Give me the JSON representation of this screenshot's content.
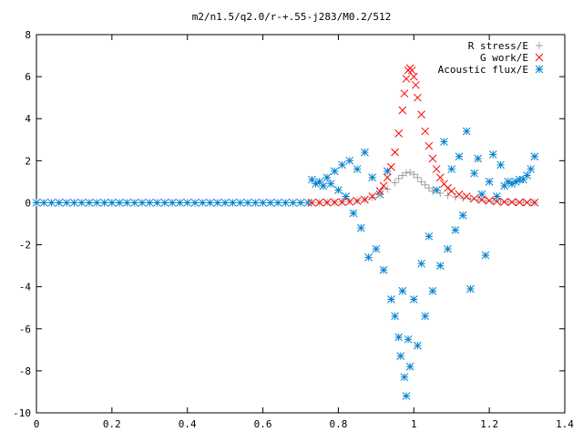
{
  "chart_data": {
    "type": "scatter",
    "title": "m2/n1.5/q2.0/r-+.55-j283/M0.2/512",
    "xlabel": "",
    "ylabel": "",
    "xlim": [
      0,
      1.4
    ],
    "ylim": [
      -10,
      8
    ],
    "x_ticks": [
      "0",
      "0.2",
      "0.4",
      "0.6",
      "0.8",
      "1",
      "1.2",
      "1.4"
    ],
    "y_ticks": [
      "8",
      "6",
      "4",
      "2",
      "0",
      "-2",
      "-4",
      "-6",
      "-8",
      "-10"
    ],
    "grid": false,
    "legend_position": "top-right",
    "series": [
      {
        "name": "R stress/E",
        "marker": "plus",
        "color": "#a0a0a0",
        "points": [
          [
            0.73,
            0.0
          ],
          [
            0.75,
            0.01
          ],
          [
            0.77,
            0.02
          ],
          [
            0.79,
            0.03
          ],
          [
            0.81,
            0.04
          ],
          [
            0.83,
            0.06
          ],
          [
            0.85,
            0.09
          ],
          [
            0.87,
            0.15
          ],
          [
            0.89,
            0.25
          ],
          [
            0.91,
            0.4
          ],
          [
            0.93,
            0.65
          ],
          [
            0.95,
            0.95
          ],
          [
            0.96,
            1.15
          ],
          [
            0.97,
            1.3
          ],
          [
            0.98,
            1.42
          ],
          [
            0.99,
            1.45
          ],
          [
            1.0,
            1.35
          ],
          [
            1.01,
            1.2
          ],
          [
            1.02,
            1.0
          ],
          [
            1.03,
            0.85
          ],
          [
            1.04,
            0.7
          ],
          [
            1.05,
            0.55
          ],
          [
            1.07,
            0.45
          ],
          [
            1.09,
            0.35
          ],
          [
            1.11,
            0.28
          ],
          [
            1.13,
            0.22
          ],
          [
            1.15,
            0.18
          ],
          [
            1.17,
            0.14
          ],
          [
            1.19,
            0.1
          ],
          [
            1.21,
            0.07
          ],
          [
            1.23,
            0.05
          ],
          [
            1.25,
            0.03
          ],
          [
            1.27,
            0.02
          ],
          [
            1.29,
            0.02
          ],
          [
            1.31,
            0.01
          ],
          [
            1.32,
            0.01
          ]
        ]
      },
      {
        "name": "G work/E",
        "marker": "cross",
        "color": "#ff0000",
        "points": [
          [
            0.73,
            0.0
          ],
          [
            0.75,
            0.01
          ],
          [
            0.77,
            0.01
          ],
          [
            0.79,
            0.02
          ],
          [
            0.81,
            0.03
          ],
          [
            0.83,
            0.05
          ],
          [
            0.85,
            0.08
          ],
          [
            0.87,
            0.15
          ],
          [
            0.89,
            0.3
          ],
          [
            0.91,
            0.55
          ],
          [
            0.92,
            0.8
          ],
          [
            0.93,
            1.2
          ],
          [
            0.94,
            1.7
          ],
          [
            0.95,
            2.4
          ],
          [
            0.96,
            3.3
          ],
          [
            0.97,
            4.4
          ],
          [
            0.975,
            5.2
          ],
          [
            0.98,
            5.9
          ],
          [
            0.985,
            6.3
          ],
          [
            0.99,
            6.4
          ],
          [
            0.995,
            6.3
          ],
          [
            1.0,
            6.0
          ],
          [
            1.005,
            5.6
          ],
          [
            1.01,
            5.0
          ],
          [
            1.02,
            4.2
          ],
          [
            1.03,
            3.4
          ],
          [
            1.04,
            2.7
          ],
          [
            1.05,
            2.1
          ],
          [
            1.06,
            1.6
          ],
          [
            1.07,
            1.2
          ],
          [
            1.08,
            0.9
          ],
          [
            1.09,
            0.7
          ],
          [
            1.1,
            0.55
          ],
          [
            1.12,
            0.4
          ],
          [
            1.14,
            0.3
          ],
          [
            1.16,
            0.2
          ],
          [
            1.18,
            0.14
          ],
          [
            1.2,
            0.1
          ],
          [
            1.22,
            0.06
          ],
          [
            1.24,
            0.04
          ],
          [
            1.26,
            0.03
          ],
          [
            1.28,
            0.02
          ],
          [
            1.3,
            0.01
          ],
          [
            1.32,
            0.01
          ]
        ]
      },
      {
        "name": "Acoustic flux/E",
        "marker": "star",
        "color": "#0080d0",
        "points": [
          [
            0.0,
            0.0
          ],
          [
            0.02,
            0.0
          ],
          [
            0.04,
            0.0
          ],
          [
            0.06,
            0.0
          ],
          [
            0.08,
            0.0
          ],
          [
            0.1,
            0.0
          ],
          [
            0.12,
            0.0
          ],
          [
            0.14,
            0.0
          ],
          [
            0.16,
            0.0
          ],
          [
            0.18,
            0.0
          ],
          [
            0.2,
            0.0
          ],
          [
            0.22,
            0.0
          ],
          [
            0.24,
            0.0
          ],
          [
            0.26,
            0.0
          ],
          [
            0.28,
            0.0
          ],
          [
            0.3,
            0.0
          ],
          [
            0.32,
            0.0
          ],
          [
            0.34,
            0.0
          ],
          [
            0.36,
            0.0
          ],
          [
            0.38,
            0.0
          ],
          [
            0.4,
            0.0
          ],
          [
            0.42,
            0.0
          ],
          [
            0.44,
            0.0
          ],
          [
            0.46,
            0.0
          ],
          [
            0.48,
            0.0
          ],
          [
            0.5,
            0.0
          ],
          [
            0.52,
            0.0
          ],
          [
            0.54,
            0.0
          ],
          [
            0.56,
            0.0
          ],
          [
            0.58,
            0.0
          ],
          [
            0.6,
            0.0
          ],
          [
            0.62,
            0.0
          ],
          [
            0.64,
            0.0
          ],
          [
            0.66,
            0.0
          ],
          [
            0.68,
            0.0
          ],
          [
            0.7,
            0.0
          ],
          [
            0.72,
            0.0
          ],
          [
            0.73,
            1.1
          ],
          [
            0.74,
            0.9
          ],
          [
            0.75,
            1.0
          ],
          [
            0.76,
            0.8
          ],
          [
            0.77,
            1.2
          ],
          [
            0.78,
            0.9
          ],
          [
            0.79,
            1.5
          ],
          [
            0.8,
            0.6
          ],
          [
            0.81,
            1.8
          ],
          [
            0.82,
            0.3
          ],
          [
            0.83,
            2.0
          ],
          [
            0.84,
            -0.5
          ],
          [
            0.85,
            1.6
          ],
          [
            0.86,
            -1.2
          ],
          [
            0.87,
            2.4
          ],
          [
            0.88,
            -2.6
          ],
          [
            0.89,
            1.2
          ],
          [
            0.9,
            -2.2
          ],
          [
            0.91,
            0.4
          ],
          [
            0.92,
            -3.2
          ],
          [
            0.93,
            1.5
          ],
          [
            0.94,
            -4.6
          ],
          [
            0.95,
            -5.4
          ],
          [
            0.96,
            -6.4
          ],
          [
            0.965,
            -7.3
          ],
          [
            0.97,
            -4.2
          ],
          [
            0.975,
            -8.3
          ],
          [
            0.98,
            -9.2
          ],
          [
            0.985,
            -6.5
          ],
          [
            0.99,
            -7.8
          ],
          [
            1.0,
            -4.6
          ],
          [
            1.01,
            -6.8
          ],
          [
            1.02,
            -2.9
          ],
          [
            1.03,
            -5.4
          ],
          [
            1.04,
            -1.6
          ],
          [
            1.05,
            -4.2
          ],
          [
            1.06,
            0.6
          ],
          [
            1.07,
            -3.0
          ],
          [
            1.08,
            2.9
          ],
          [
            1.09,
            -2.2
          ],
          [
            1.1,
            1.6
          ],
          [
            1.11,
            -1.3
          ],
          [
            1.12,
            2.2
          ],
          [
            1.13,
            -0.6
          ],
          [
            1.14,
            3.4
          ],
          [
            1.15,
            -4.1
          ],
          [
            1.16,
            1.4
          ],
          [
            1.17,
            2.1
          ],
          [
            1.18,
            0.4
          ],
          [
            1.19,
            -2.5
          ],
          [
            1.2,
            1.0
          ],
          [
            1.21,
            2.3
          ],
          [
            1.22,
            0.3
          ],
          [
            1.23,
            1.8
          ],
          [
            1.24,
            0.8
          ],
          [
            1.25,
            1.0
          ],
          [
            1.26,
            0.9
          ],
          [
            1.27,
            1.0
          ],
          [
            1.28,
            1.1
          ],
          [
            1.29,
            1.1
          ],
          [
            1.3,
            1.3
          ],
          [
            1.31,
            1.6
          ],
          [
            1.32,
            2.2
          ]
        ]
      }
    ]
  }
}
